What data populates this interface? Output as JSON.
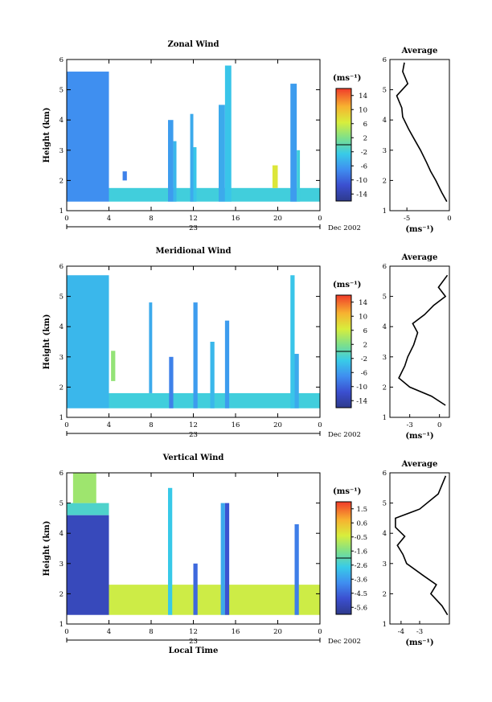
{
  "chart_data": [
    {
      "type": "heatmap",
      "title": "Zonal Wind",
      "ylabel": "Height (km)",
      "xlabel": "",
      "x_ticks": [
        "0",
        "4",
        "8",
        "12",
        "16",
        "20",
        "0"
      ],
      "xlim": [
        0,
        24
      ],
      "ylim": [
        1,
        6
      ],
      "y_ticks": [
        "1",
        "2",
        "3",
        "4",
        "5",
        "6"
      ],
      "date_day": "23",
      "date_month": "Dec 2002",
      "colorbar": {
        "unit": "(ms⁻¹)",
        "ticks": [
          "14",
          "10",
          "6",
          "2",
          "-2",
          "-6",
          "-10",
          "-14"
        ],
        "range": [
          -16,
          16
        ]
      },
      "blocks": [
        {
          "x": [
            0,
            4
          ],
          "y": [
            1.3,
            5.6
          ],
          "v": -7
        },
        {
          "x": [
            4,
            24
          ],
          "y": [
            1.3,
            1.75
          ],
          "v": -2
        },
        {
          "x": [
            5.3,
            5.7
          ],
          "y": [
            2.0,
            2.3
          ],
          "v": -8
        },
        {
          "x": [
            9.6,
            10.1
          ],
          "y": [
            1.3,
            4.0
          ],
          "v": -6
        },
        {
          "x": [
            10.1,
            10.4
          ],
          "y": [
            1.3,
            3.3
          ],
          "v": -4
        },
        {
          "x": [
            11.7,
            12.0
          ],
          "y": [
            1.3,
            4.2
          ],
          "v": -5
        },
        {
          "x": [
            12.0,
            12.3
          ],
          "y": [
            1.3,
            3.1
          ],
          "v": -3
        },
        {
          "x": [
            14.4,
            15.0
          ],
          "y": [
            1.3,
            4.5
          ],
          "v": -5
        },
        {
          "x": [
            15.0,
            15.6
          ],
          "y": [
            1.3,
            5.8
          ],
          "v": -3
        },
        {
          "x": [
            19.5,
            20.0
          ],
          "y": [
            1.75,
            2.5
          ],
          "v": 7
        },
        {
          "x": [
            21.2,
            21.8
          ],
          "y": [
            1.3,
            5.2
          ],
          "v": -6
        },
        {
          "x": [
            21.8,
            22.1
          ],
          "y": [
            1.3,
            3.0
          ],
          "v": -2
        }
      ],
      "profile": {
        "title": "Average",
        "xlabel": "(ms⁻¹)",
        "xlim": [
          -7,
          0
        ],
        "x_ticks": [
          "-5",
          "0"
        ],
        "ylim": [
          1,
          6
        ],
        "y_ticks": [
          "1",
          "2",
          "3",
          "4",
          "5",
          "6"
        ],
        "x": [
          -0.3,
          -0.9,
          -1.6,
          -2.2,
          -2.7,
          -3.4,
          -4.2,
          -4.8,
          -5.5,
          -5.6,
          -6.2,
          -4.9,
          -5.5,
          -5.3
        ],
        "y": [
          1.3,
          1.6,
          2.0,
          2.3,
          2.6,
          3.0,
          3.4,
          3.7,
          4.1,
          4.4,
          4.8,
          5.2,
          5.6,
          5.9
        ]
      }
    },
    {
      "type": "heatmap",
      "title": "Meridional Wind",
      "ylabel": "Height (km)",
      "xlabel": "",
      "x_ticks": [
        "0",
        "4",
        "8",
        "12",
        "16",
        "20",
        "0"
      ],
      "xlim": [
        0,
        24
      ],
      "ylim": [
        1,
        6
      ],
      "y_ticks": [
        "1",
        "2",
        "3",
        "4",
        "5",
        "6"
      ],
      "date_day": "23",
      "date_month": "Dec 2002",
      "colorbar": {
        "unit": "(ms⁻¹)",
        "ticks": [
          "14",
          "10",
          "6",
          "2",
          "-2",
          "-6",
          "-10",
          "-14"
        ],
        "range": [
          -16,
          16
        ]
      },
      "blocks": [
        {
          "x": [
            0,
            4
          ],
          "y": [
            1.3,
            5.7
          ],
          "v": -4
        },
        {
          "x": [
            4,
            24
          ],
          "y": [
            1.3,
            1.8
          ],
          "v": -2
        },
        {
          "x": [
            4.2,
            4.6
          ],
          "y": [
            2.2,
            3.2
          ],
          "v": 3
        },
        {
          "x": [
            7.8,
            8.1
          ],
          "y": [
            1.8,
            4.8
          ],
          "v": -5
        },
        {
          "x": [
            9.7,
            10.1
          ],
          "y": [
            1.3,
            3.0
          ],
          "v": -8
        },
        {
          "x": [
            12.0,
            12.4
          ],
          "y": [
            1.3,
            4.8
          ],
          "v": -6
        },
        {
          "x": [
            13.6,
            14.0
          ],
          "y": [
            1.3,
            3.5
          ],
          "v": -4
        },
        {
          "x": [
            15.0,
            15.4
          ],
          "y": [
            1.3,
            4.2
          ],
          "v": -6
        },
        {
          "x": [
            21.2,
            21.6
          ],
          "y": [
            1.3,
            5.7
          ],
          "v": -3
        },
        {
          "x": [
            21.6,
            22.0
          ],
          "y": [
            1.3,
            3.1
          ],
          "v": -5
        }
      ],
      "profile": {
        "title": "Average",
        "xlabel": "(ms⁻¹)",
        "xlim": [
          -5,
          1
        ],
        "x_ticks": [
          "-3",
          "0"
        ],
        "ylim": [
          1,
          6
        ],
        "y_ticks": [
          "1",
          "2",
          "3",
          "4",
          "5",
          "6"
        ],
        "x": [
          0.6,
          -0.8,
          -3.0,
          -4.1,
          -3.5,
          -3.2,
          -2.6,
          -2.2,
          -2.7,
          -1.5,
          -0.6,
          0.6,
          -0.1,
          0.8
        ],
        "y": [
          1.4,
          1.7,
          2.0,
          2.3,
          2.7,
          3.0,
          3.4,
          3.8,
          4.1,
          4.4,
          4.7,
          5.0,
          5.3,
          5.7
        ]
      }
    },
    {
      "type": "heatmap",
      "title": "Vertical Wind",
      "ylabel": "Height (km)",
      "xlabel": "Local Time",
      "x_ticks": [
        "0",
        "4",
        "8",
        "12",
        "16",
        "20",
        "0"
      ],
      "xlim": [
        0,
        24
      ],
      "ylim": [
        1,
        6
      ],
      "y_ticks": [
        "1",
        "2",
        "3",
        "4",
        "5",
        "6"
      ],
      "date_day": "23",
      "date_month": "Dec 2002",
      "colorbar": {
        "unit": "(ms⁻¹)",
        "ticks": [
          "1.5",
          "0.6",
          "-0.5",
          "-1.6",
          "-2.6",
          "-3.6",
          "-4.5",
          "-5.6"
        ],
        "range": [
          -6.2,
          2.0
        ]
      },
      "blocks": [
        {
          "x": [
            0,
            4
          ],
          "y": [
            1.3,
            4.6
          ],
          "v": -5.4
        },
        {
          "x": [
            0,
            4
          ],
          "y": [
            4.6,
            5.0
          ],
          "v": -2.4
        },
        {
          "x": [
            0.6,
            2.8
          ],
          "y": [
            5.0,
            6.0
          ],
          "v": -1.2
        },
        {
          "x": [
            4,
            24
          ],
          "y": [
            1.3,
            2.3
          ],
          "v": -0.6
        },
        {
          "x": [
            9.6,
            10.0
          ],
          "y": [
            1.3,
            5.5
          ],
          "v": -2.8
        },
        {
          "x": [
            12.0,
            12.4
          ],
          "y": [
            1.3,
            3.0
          ],
          "v": -4.6
        },
        {
          "x": [
            14.6,
            15.0
          ],
          "y": [
            1.3,
            5.0
          ],
          "v": -3.4
        },
        {
          "x": [
            15.0,
            15.4
          ],
          "y": [
            1.3,
            5.0
          ],
          "v": -5.0
        },
        {
          "x": [
            21.6,
            22.0
          ],
          "y": [
            1.3,
            4.3
          ],
          "v": -4.2
        }
      ],
      "profile": {
        "title": "Average",
        "xlabel": "(ms⁻¹)",
        "xlim": [
          -4.6,
          -1.4
        ],
        "x_ticks": [
          "-4",
          "-3"
        ],
        "ylim": [
          1,
          6
        ],
        "y_ticks": [
          "1",
          "2",
          "3",
          "4",
          "5",
          "6"
        ],
        "x": [
          -1.5,
          -1.8,
          -2.4,
          -2.1,
          -2.8,
          -3.7,
          -3.9,
          -4.2,
          -3.8,
          -4.3,
          -4.3,
          -3.0,
          -2.0,
          -1.6
        ],
        "y": [
          1.3,
          1.6,
          2.0,
          2.3,
          2.6,
          3.0,
          3.3,
          3.6,
          3.9,
          4.2,
          4.5,
          4.8,
          5.3,
          5.9
        ]
      }
    }
  ]
}
